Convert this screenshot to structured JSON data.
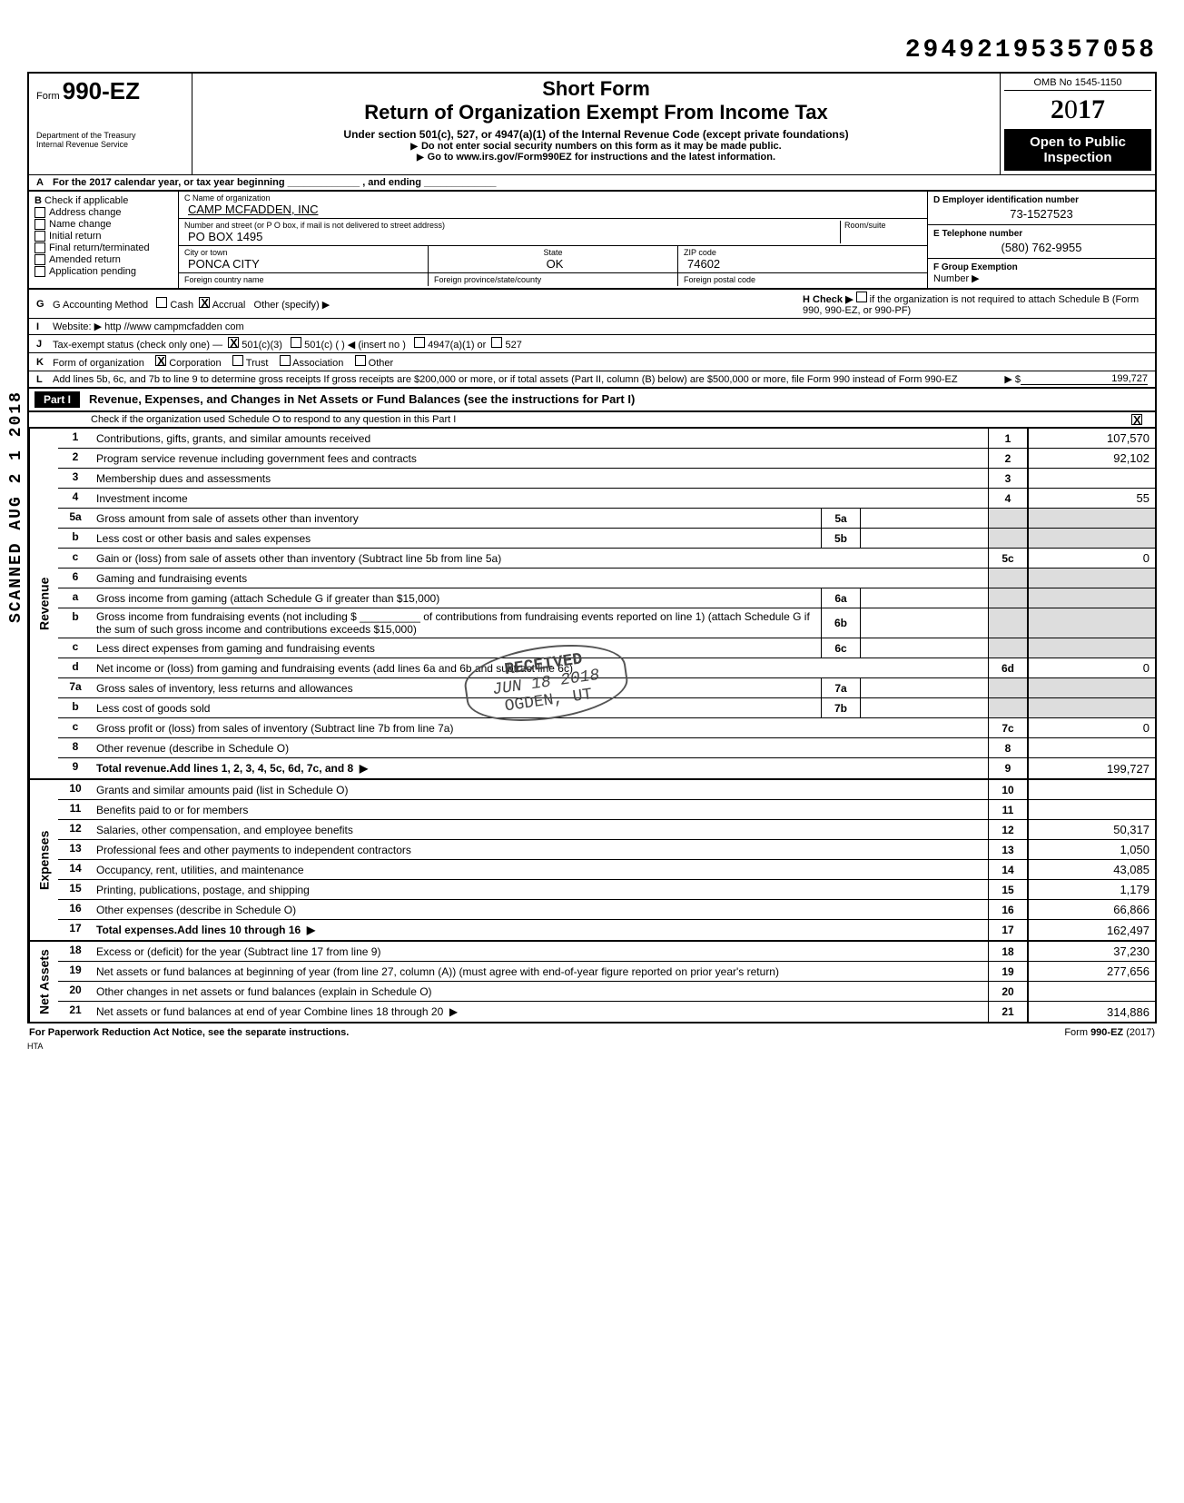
{
  "top_number": "29492195357058",
  "header": {
    "form_prefix": "Form",
    "form_number": "990-EZ",
    "dept_line1": "Department of the Treasury",
    "dept_line2": "Internal Revenue Service",
    "title1": "Short Form",
    "title2": "Return of Organization Exempt From Income Tax",
    "sub1": "Under section 501(c), 527, or 4947(a)(1) of the Internal Revenue Code (except private foundations)",
    "sub2": "Do not enter social security numbers on this form as it may be made public.",
    "sub3": "Go to www.irs.gov/Form990EZ for instructions and the latest information.",
    "omb": "OMB No 1545-1150",
    "year": "2017",
    "open_pub1": "Open to Public",
    "open_pub2": "Inspection"
  },
  "line_a": "For the 2017 calendar year, or tax year beginning _____________ , and ending _____________",
  "section_b": {
    "label": "Check if applicable",
    "checks": [
      "Address change",
      "Name change",
      "Initial return",
      "Final return/terminated",
      "Amended return",
      "Application pending"
    ],
    "c_name_label": "C  Name of organization",
    "c_name": "CAMP MCFADDEN, INC",
    "street_label": "Number and street (or P O box, if mail is not delivered to street address)",
    "room_label": "Room/suite",
    "street": "PO BOX 1495",
    "city_label": "City or town",
    "state_label": "State",
    "zip_label": "ZIP code",
    "city": "PONCA CITY",
    "state": "OK",
    "zip": "74602",
    "foreign_country_label": "Foreign country name",
    "foreign_prov_label": "Foreign province/state/county",
    "foreign_postal_label": "Foreign postal code",
    "d_label": "D  Employer identification number",
    "d_val": "73-1527523",
    "e_label": "E  Telephone number",
    "e_val": "(580) 762-9955",
    "f_label": "F  Group Exemption",
    "f_sub": "Number ▶"
  },
  "g": {
    "label": "G  Accounting Method",
    "cash": "Cash",
    "accrual": "Accrual",
    "other": "Other (specify)",
    "h_label": "H  Check ▶",
    "h_tail": "if the organization is not required to attach Schedule B (Form 990, 990-EZ, or 990-PF)"
  },
  "i": {
    "label": "I",
    "desc": "Website: ▶ http //www campmcfadden com"
  },
  "j": {
    "label": "J",
    "desc": "Tax-exempt status (check only one) —",
    "opts": [
      "501(c)(3)",
      "501(c) (      ) ◀ (insert no )",
      "4947(a)(1) or",
      "527"
    ]
  },
  "k": {
    "label": "K",
    "desc": "Form of organization",
    "opts": [
      "Corporation",
      "Trust",
      "Association",
      "Other"
    ]
  },
  "l": {
    "label": "L",
    "desc": "Add lines 5b, 6c, and 7b to line 9 to determine gross receipts  If gross receipts are $200,000 or more, or if total assets (Part II, column (B) below) are $500,000 or more, file Form 990 instead of Form 990-EZ",
    "arrow": "▶ $",
    "val": "199,727"
  },
  "part1": {
    "title": "Revenue, Expenses, and Changes in Net Assets or Fund Balances (see the instructions for Part I)",
    "check_line": "Check if the organization used Schedule O to respond to any question in this Part I"
  },
  "sidebars": {
    "rev": "Revenue",
    "exp": "Expenses",
    "na": "Net Assets"
  },
  "rows": [
    {
      "n": "1",
      "d": "Contributions, gifts, grants, and similar amounts received",
      "box": "1",
      "v": "107,570"
    },
    {
      "n": "2",
      "d": "Program service revenue including government fees and contracts",
      "box": "2",
      "v": "92,102"
    },
    {
      "n": "3",
      "d": "Membership dues and assessments",
      "box": "3",
      "v": ""
    },
    {
      "n": "4",
      "d": "Investment income",
      "box": "4",
      "v": "55"
    },
    {
      "n": "5a",
      "d": "Gross amount from sale of assets other than inventory",
      "ibox": "5a",
      "iv": ""
    },
    {
      "n": "b",
      "d": "Less  cost or other basis and sales expenses",
      "ibox": "5b",
      "iv": ""
    },
    {
      "n": "c",
      "d": "Gain or (loss) from sale of assets other than inventory (Subtract line 5b from line 5a)",
      "box": "5c",
      "v": "0"
    },
    {
      "n": "6",
      "d": "Gaming and fundraising events"
    },
    {
      "n": "a",
      "d": "Gross income from gaming (attach Schedule G if greater than $15,000)",
      "ibox": "6a",
      "iv": ""
    },
    {
      "n": "b",
      "d": "Gross income from fundraising events (not including   $ __________ of contributions from fundraising events reported on line 1) (attach Schedule G if the sum of such gross income and contributions exceeds $15,000)",
      "ibox": "6b",
      "iv": ""
    },
    {
      "n": "c",
      "d": "Less  direct expenses from gaming and fundraising events",
      "ibox": "6c",
      "iv": ""
    },
    {
      "n": "d",
      "d": "Net income or (loss) from gaming and fundraising events (add lines 6a and 6b and subtract line 6c)",
      "box": "6d",
      "v": "0"
    },
    {
      "n": "7a",
      "d": "Gross sales of inventory, less returns and allowances",
      "ibox": "7a",
      "iv": ""
    },
    {
      "n": "b",
      "d": "Less  cost of goods sold",
      "ibox": "7b",
      "iv": ""
    },
    {
      "n": "c",
      "d": "Gross profit or (loss) from sales of inventory (Subtract line 7b from line 7a)",
      "box": "7c",
      "v": "0"
    },
    {
      "n": "8",
      "d": "Other revenue (describe in Schedule O)",
      "box": "8",
      "v": ""
    },
    {
      "n": "9",
      "d": "Total revenue. Add lines 1, 2, 3, 4, 5c, 6d, 7c, and 8",
      "box": "9",
      "v": "199,727",
      "bold": true,
      "arrow": true
    }
  ],
  "exp_rows": [
    {
      "n": "10",
      "d": "Grants and similar amounts paid (list in Schedule O)",
      "box": "10",
      "v": ""
    },
    {
      "n": "11",
      "d": "Benefits paid to or for members",
      "box": "11",
      "v": ""
    },
    {
      "n": "12",
      "d": "Salaries, other compensation, and employee benefits",
      "box": "12",
      "v": "50,317"
    },
    {
      "n": "13",
      "d": "Professional fees and other payments to independent contractors",
      "box": "13",
      "v": "1,050"
    },
    {
      "n": "14",
      "d": "Occupancy, rent, utilities, and maintenance",
      "box": "14",
      "v": "43,085"
    },
    {
      "n": "15",
      "d": "Printing, publications, postage, and shipping",
      "box": "15",
      "v": "1,179"
    },
    {
      "n": "16",
      "d": "Other expenses (describe in Schedule O)",
      "box": "16",
      "v": "66,866"
    },
    {
      "n": "17",
      "d": "Total expenses. Add lines 10 through 16",
      "box": "17",
      "v": "162,497",
      "bold": true,
      "arrow": true
    }
  ],
  "na_rows": [
    {
      "n": "18",
      "d": "Excess or (deficit) for the year (Subtract line 17 from line 9)",
      "box": "18",
      "v": "37,230"
    },
    {
      "n": "19",
      "d": "Net assets or fund balances at beginning of year (from line 27, column (A)) (must agree with end-of-year figure reported on prior year's return)",
      "box": "19",
      "v": "277,656"
    },
    {
      "n": "20",
      "d": "Other changes in net assets or fund balances (explain in Schedule O)",
      "box": "20",
      "v": ""
    },
    {
      "n": "21",
      "d": "Net assets or fund balances at end of year  Combine lines 18 through 20",
      "box": "21",
      "v": "314,886",
      "arrow": true
    }
  ],
  "footer": {
    "left": "For Paperwork Reduction Act Notice, see the separate instructions.",
    "hta": "HTA",
    "right": "Form 990-EZ (2017)"
  },
  "side_stamp": "SCANNED   AUG 2 1 2018",
  "received_stamp": {
    "l1": "RECEIVED",
    "l2": "JUN 18 2018",
    "l3": "OGDEN, UT"
  }
}
